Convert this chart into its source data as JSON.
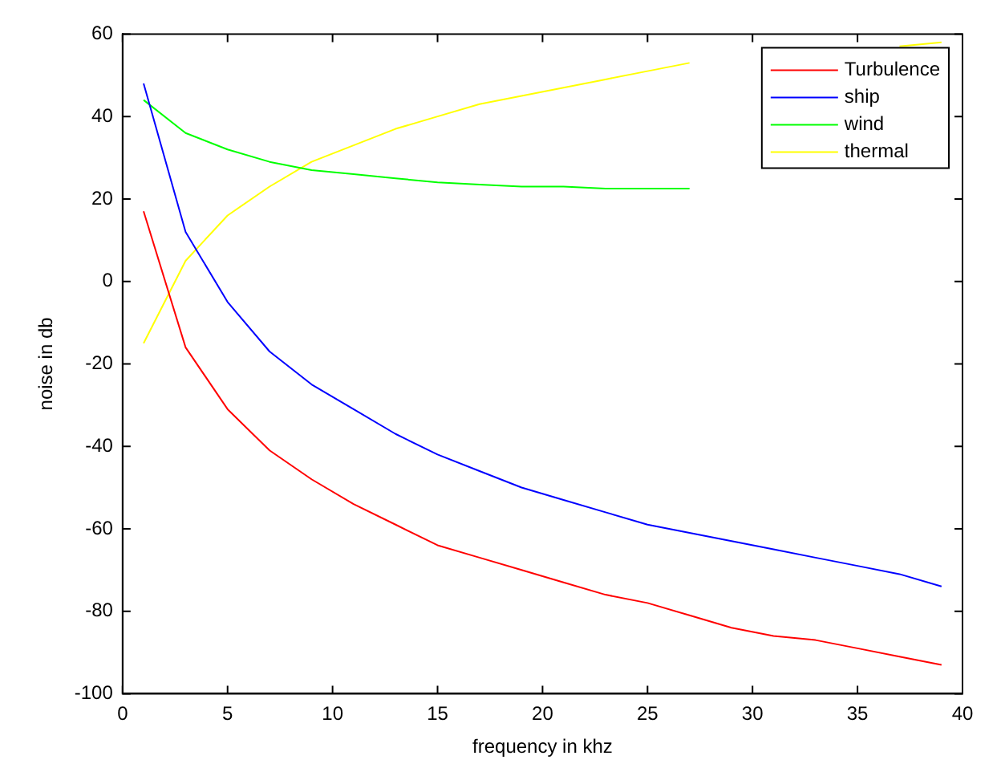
{
  "chart_data": {
    "type": "line",
    "xlabel": "frequency in khz",
    "ylabel": "noise in db",
    "x": [
      1,
      3,
      5,
      7,
      9,
      11,
      13,
      15,
      17,
      19,
      21,
      23,
      25,
      27,
      29,
      31,
      33,
      35,
      37,
      39
    ],
    "xlim": [
      0,
      40
    ],
    "xticks": [
      0,
      5,
      10,
      15,
      20,
      25,
      30,
      35,
      40
    ],
    "ylim": [
      -100,
      60
    ],
    "yticks": [
      -100,
      -80,
      -60,
      -40,
      -20,
      0,
      20,
      40,
      60
    ],
    "grid": false,
    "legend": "top right",
    "marker": "none",
    "line_style": "solid",
    "series": [
      {
        "name": "Turbulence",
        "color": "#ff0000",
        "values": [
          17,
          -16,
          -31,
          -41,
          -48,
          -54,
          -59,
          -64,
          -67,
          -70,
          -73,
          -76,
          -78,
          -81,
          -84,
          -86,
          -87,
          -89,
          -91,
          -93
        ]
      },
      {
        "name": "ship",
        "color": "#0000ff",
        "values": [
          48,
          12,
          -5,
          -17,
          -25,
          -31,
          -37,
          -42,
          -46,
          -50,
          -53,
          -56,
          -59,
          -61,
          -63,
          -65,
          -67,
          -69,
          -71,
          -74
        ]
      },
      {
        "name": "wind",
        "color": "#00ff00",
        "values": [
          44,
          36,
          32,
          29,
          27,
          26,
          25,
          24,
          23.5,
          23,
          23,
          22.5,
          22.5,
          22.5,
          null,
          null,
          null,
          null,
          null,
          null
        ]
      },
      {
        "name": "thermal",
        "color": "#ffff00",
        "values": [
          -15,
          5,
          16,
          23,
          29,
          33,
          37,
          40,
          43,
          45,
          47,
          49,
          51,
          53,
          null,
          null,
          null,
          null,
          57,
          58
        ]
      }
    ]
  }
}
